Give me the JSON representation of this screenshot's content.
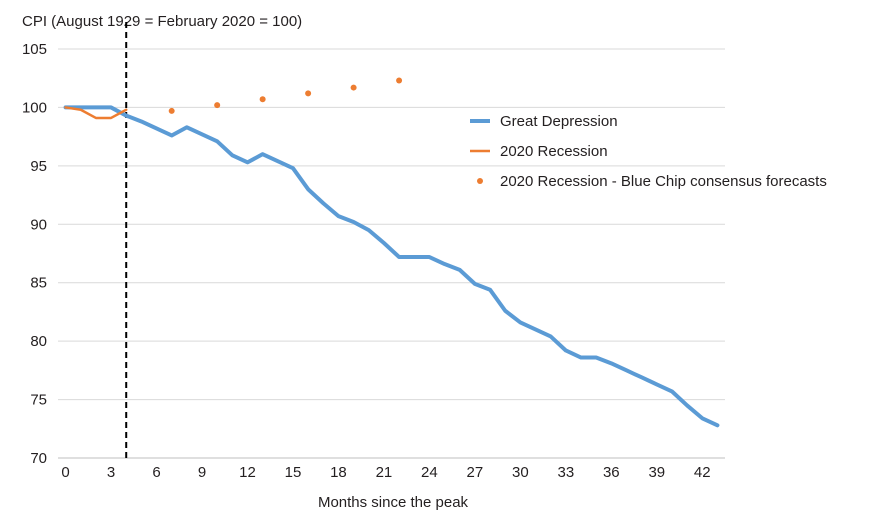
{
  "chart_data": {
    "type": "line",
    "title": "CPI (August 1929 = February 2020 = 100)",
    "xlabel": "Months since the peak",
    "ylabel": "",
    "xlim": [
      -0.5,
      43.5
    ],
    "ylim": [
      70,
      105
    ],
    "x_ticks": [
      0,
      3,
      6,
      9,
      12,
      15,
      18,
      21,
      24,
      27,
      30,
      33,
      36,
      39,
      42
    ],
    "y_ticks": [
      70,
      75,
      80,
      85,
      90,
      95,
      100,
      105
    ],
    "grid": "horizontal",
    "legend_position": "right",
    "vertical_marker": {
      "x": 4,
      "style": "dashed"
    },
    "series": [
      {
        "name": "Great Depression",
        "kind": "line",
        "color": "#5b9bd5",
        "x": [
          0,
          1,
          2,
          3,
          4,
          5,
          6,
          7,
          8,
          9,
          10,
          11,
          12,
          13,
          14,
          15,
          16,
          17,
          18,
          19,
          20,
          21,
          22,
          23,
          24,
          25,
          26,
          27,
          28,
          29,
          30,
          31,
          32,
          33,
          34,
          35,
          36,
          37,
          38,
          39,
          40,
          41,
          42,
          43
        ],
        "values": [
          100.0,
          100.0,
          100.0,
          100.0,
          99.3,
          98.8,
          98.2,
          97.6,
          98.3,
          97.7,
          97.1,
          95.9,
          95.3,
          96.0,
          95.4,
          94.8,
          93.0,
          91.8,
          90.7,
          90.2,
          89.5,
          88.4,
          87.2,
          87.2,
          87.2,
          86.6,
          86.1,
          84.9,
          84.4,
          82.6,
          81.6,
          81.0,
          80.4,
          79.2,
          78.6,
          78.6,
          78.1,
          77.5,
          76.9,
          76.3,
          75.7,
          74.5,
          73.4,
          72.8
        ]
      },
      {
        "name": "2020 Recession",
        "kind": "line",
        "color": "#ed7d31",
        "x": [
          0,
          1,
          2,
          3,
          4
        ],
        "values": [
          100.0,
          99.8,
          99.1,
          99.1,
          99.8
        ]
      },
      {
        "name": "2020 Recession - Blue Chip consensus forecasts",
        "kind": "scatter",
        "color": "#ed7d31",
        "x": [
          7,
          10,
          13,
          16,
          19,
          22
        ],
        "values": [
          99.7,
          100.2,
          100.7,
          101.2,
          101.7,
          102.3
        ]
      }
    ]
  }
}
